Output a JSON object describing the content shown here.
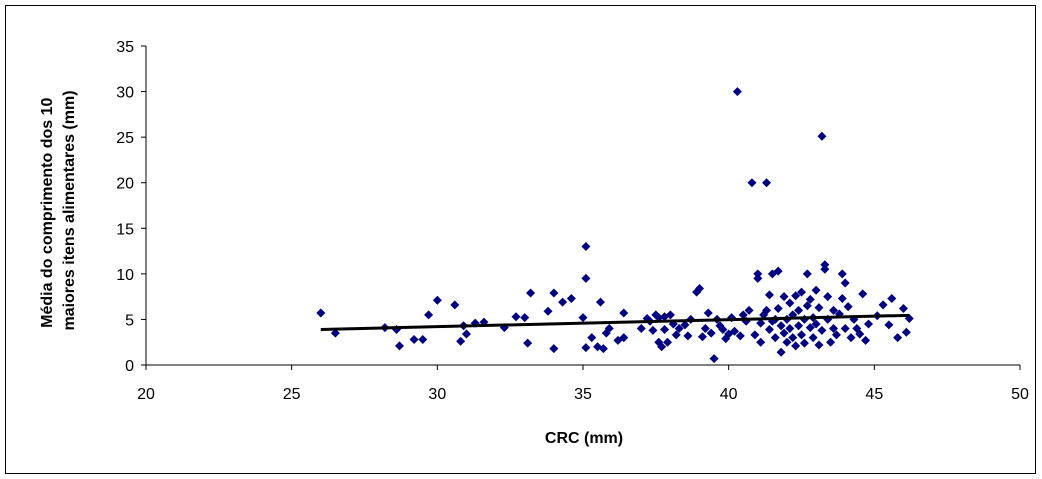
{
  "chart_data": {
    "type": "scatter",
    "xlabel": "CRC (mm)",
    "ylabel_lines": [
      "Média do comprimento dos 10",
      "maiores itens alimentares (mm)"
    ],
    "xlim": [
      20,
      50
    ],
    "ylim": [
      0,
      35
    ],
    "xticks": [
      20,
      25,
      30,
      35,
      40,
      45,
      50
    ],
    "yticks": [
      0,
      5,
      10,
      15,
      20,
      25,
      30,
      35
    ],
    "grid": false,
    "marker_color": "#000080",
    "trendline_color": "#000000",
    "series": [
      {
        "marker": "diamond",
        "points": [
          [
            26.0,
            5.7
          ],
          [
            26.5,
            3.5
          ],
          [
            28.2,
            4.1
          ],
          [
            28.6,
            3.9
          ],
          [
            28.7,
            2.1
          ],
          [
            29.2,
            2.8
          ],
          [
            29.5,
            2.8
          ],
          [
            29.7,
            5.5
          ],
          [
            30.0,
            7.1
          ],
          [
            30.6,
            6.6
          ],
          [
            30.8,
            2.6
          ],
          [
            30.9,
            4.3
          ],
          [
            31.0,
            3.4
          ],
          [
            31.3,
            4.6
          ],
          [
            31.6,
            4.7
          ],
          [
            32.3,
            4.1
          ],
          [
            32.7,
            5.3
          ],
          [
            33.0,
            5.2
          ],
          [
            33.1,
            2.4
          ],
          [
            33.2,
            7.9
          ],
          [
            33.8,
            5.9
          ],
          [
            34.0,
            7.9
          ],
          [
            34.0,
            1.8
          ],
          [
            34.3,
            6.9
          ],
          [
            34.6,
            7.3
          ],
          [
            35.0,
            5.2
          ],
          [
            35.1,
            13.0
          ],
          [
            35.1,
            9.5
          ],
          [
            35.1,
            1.9
          ],
          [
            35.3,
            3.0
          ],
          [
            35.5,
            2.0
          ],
          [
            35.6,
            6.9
          ],
          [
            35.7,
            1.8
          ],
          [
            35.8,
            3.5
          ],
          [
            35.9,
            4.0
          ],
          [
            36.2,
            2.7
          ],
          [
            36.4,
            3.0
          ],
          [
            36.4,
            5.7
          ],
          [
            37.0,
            4.0
          ],
          [
            37.2,
            5.1
          ],
          [
            37.3,
            4.8
          ],
          [
            37.4,
            3.8
          ],
          [
            37.5,
            5.5
          ],
          [
            37.6,
            2.5
          ],
          [
            37.6,
            5.2
          ],
          [
            37.7,
            2.0
          ],
          [
            37.8,
            3.9
          ],
          [
            37.8,
            5.3
          ],
          [
            37.9,
            2.5
          ],
          [
            38.0,
            5.5
          ],
          [
            38.1,
            4.5
          ],
          [
            38.2,
            3.3
          ],
          [
            38.3,
            4.0
          ],
          [
            38.5,
            4.4
          ],
          [
            38.6,
            3.2
          ],
          [
            38.7,
            5.0
          ],
          [
            38.9,
            8.0
          ],
          [
            39.0,
            8.4
          ],
          [
            39.1,
            3.1
          ],
          [
            39.2,
            4.0
          ],
          [
            39.3,
            5.7
          ],
          [
            39.4,
            3.5
          ],
          [
            39.5,
            0.7
          ],
          [
            39.6,
            5.0
          ],
          [
            39.7,
            4.3
          ],
          [
            39.8,
            3.9
          ],
          [
            39.9,
            2.9
          ],
          [
            40.0,
            3.4
          ],
          [
            40.1,
            5.2
          ],
          [
            40.2,
            3.7
          ],
          [
            40.3,
            30.0
          ],
          [
            40.4,
            3.2
          ],
          [
            40.5,
            5.5
          ],
          [
            40.6,
            4.8
          ],
          [
            40.7,
            6.0
          ],
          [
            40.8,
            20.0
          ],
          [
            40.9,
            3.3
          ],
          [
            41.0,
            9.5
          ],
          [
            41.0,
            10.0
          ],
          [
            41.1,
            4.6
          ],
          [
            41.1,
            2.5
          ],
          [
            41.2,
            5.5
          ],
          [
            41.3,
            6.0
          ],
          [
            41.3,
            20.0
          ],
          [
            41.4,
            7.7
          ],
          [
            41.4,
            3.9
          ],
          [
            41.5,
            10.0
          ],
          [
            41.5,
            4.8
          ],
          [
            41.6,
            3.0
          ],
          [
            41.6,
            5.0
          ],
          [
            41.7,
            10.3
          ],
          [
            41.7,
            6.2
          ],
          [
            41.8,
            1.4
          ],
          [
            41.8,
            4.3
          ],
          [
            41.9,
            7.5
          ],
          [
            41.9,
            3.5
          ],
          [
            42.0,
            5.0
          ],
          [
            42.0,
            2.5
          ],
          [
            42.1,
            4.0
          ],
          [
            42.1,
            6.8
          ],
          [
            42.2,
            3.0
          ],
          [
            42.2,
            5.5
          ],
          [
            42.3,
            7.6
          ],
          [
            42.3,
            2.1
          ],
          [
            42.4,
            4.3
          ],
          [
            42.4,
            6.0
          ],
          [
            42.5,
            3.3
          ],
          [
            42.5,
            8.0
          ],
          [
            42.6,
            5.0
          ],
          [
            42.6,
            2.4
          ],
          [
            42.7,
            6.5
          ],
          [
            42.7,
            10.0
          ],
          [
            42.8,
            4.1
          ],
          [
            42.8,
            7.2
          ],
          [
            42.9,
            3.0
          ],
          [
            42.9,
            5.2
          ],
          [
            43.0,
            8.2
          ],
          [
            43.0,
            4.5
          ],
          [
            43.1,
            2.2
          ],
          [
            43.1,
            6.3
          ],
          [
            43.2,
            25.1
          ],
          [
            43.2,
            3.8
          ],
          [
            43.3,
            10.5
          ],
          [
            43.3,
            11.0
          ],
          [
            43.4,
            5.0
          ],
          [
            43.4,
            7.5
          ],
          [
            43.5,
            2.5
          ],
          [
            43.6,
            4.0
          ],
          [
            43.6,
            6.0
          ],
          [
            43.7,
            3.3
          ],
          [
            43.8,
            5.6
          ],
          [
            43.9,
            10.0
          ],
          [
            43.9,
            7.3
          ],
          [
            44.0,
            9.0
          ],
          [
            44.0,
            4.0
          ],
          [
            44.1,
            6.4
          ],
          [
            44.2,
            3.0
          ],
          [
            44.3,
            5.0
          ],
          [
            44.4,
            4.0
          ],
          [
            44.5,
            3.4
          ],
          [
            44.6,
            7.8
          ],
          [
            44.7,
            2.7
          ],
          [
            44.8,
            4.5
          ],
          [
            45.1,
            5.4
          ],
          [
            45.3,
            6.6
          ],
          [
            45.5,
            4.4
          ],
          [
            45.6,
            7.3
          ],
          [
            45.8,
            3.0
          ],
          [
            46.0,
            6.2
          ],
          [
            46.1,
            3.6
          ],
          [
            46.2,
            5.1
          ]
        ]
      }
    ],
    "trendline": {
      "x": [
        26.0,
        46.2
      ],
      "y": [
        3.9,
        5.45
      ]
    }
  }
}
